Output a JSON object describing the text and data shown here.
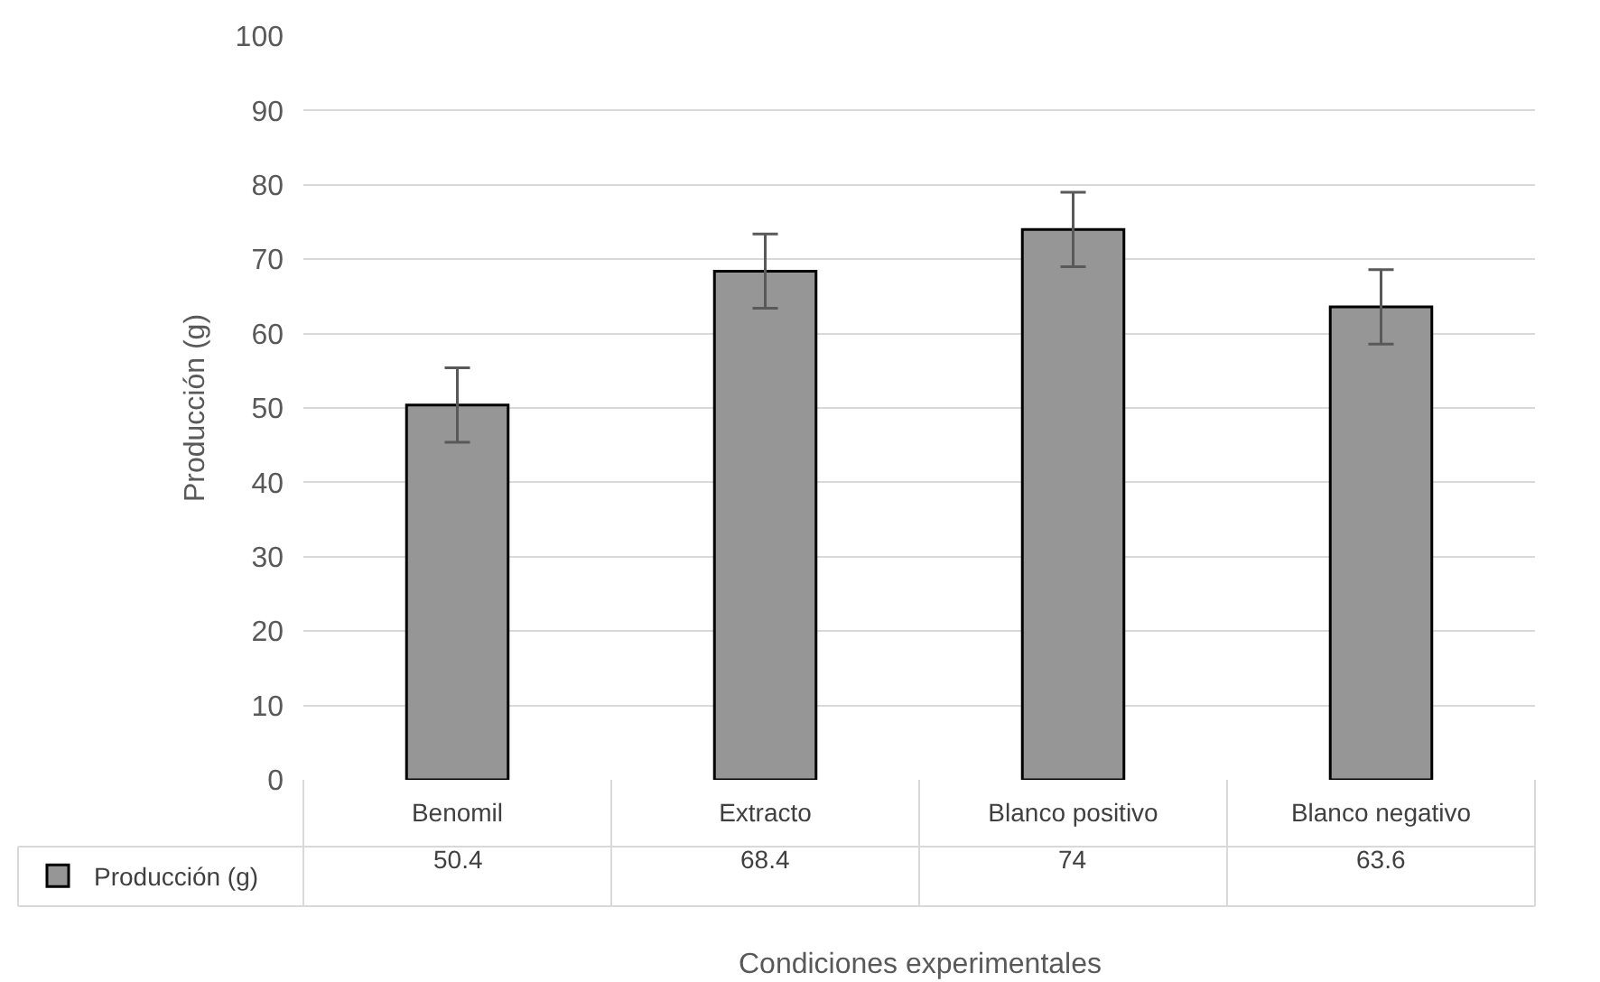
{
  "chart_data": {
    "type": "bar",
    "xlabel": "Condiciones experimentales",
    "ylabel": "Producción (g)",
    "categories": [
      "Benomil",
      "Extracto",
      "Blanco positivo",
      "Blanco negativo"
    ],
    "series": [
      {
        "name": "Producción (g)",
        "color": "#969696",
        "values": [
          50.4,
          68.4,
          74,
          63.6
        ],
        "errors": [
          5,
          5,
          5,
          5
        ]
      }
    ],
    "ylim": [
      0,
      100
    ],
    "yticks": [
      0,
      10,
      20,
      30,
      40,
      50,
      60,
      70,
      80,
      90,
      100
    ],
    "grid": "y",
    "legend": "bottom left",
    "data_labels": true
  }
}
